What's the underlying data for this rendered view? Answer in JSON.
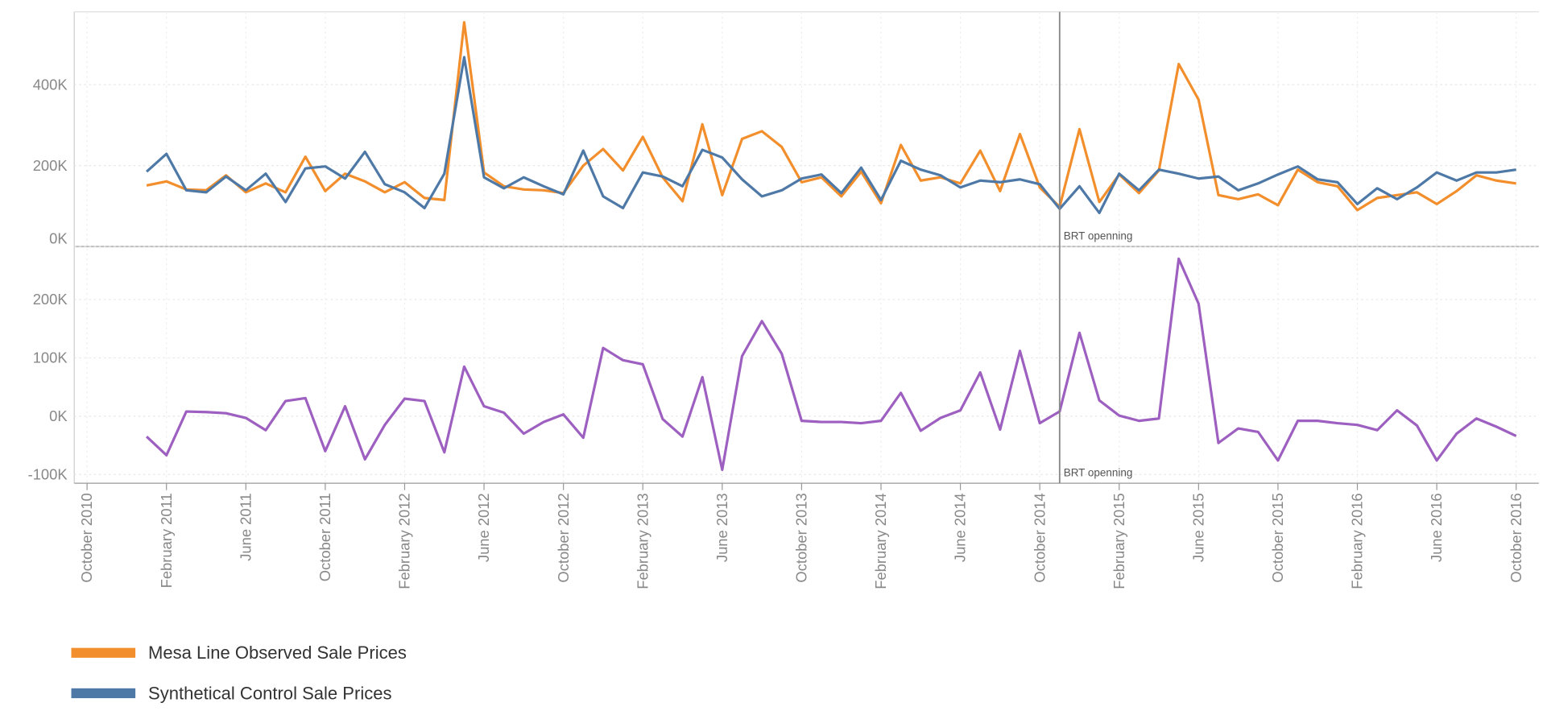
{
  "chart_data": [
    {
      "type": "line",
      "x": [
        "2011-01",
        "2011-02",
        "2011-03",
        "2011-04",
        "2011-05",
        "2011-06",
        "2011-07",
        "2011-08",
        "2011-09",
        "2011-10",
        "2011-11",
        "2011-12",
        "2012-01",
        "2012-02",
        "2012-03",
        "2012-04",
        "2012-05",
        "2012-06",
        "2012-07",
        "2012-08",
        "2012-09",
        "2012-10",
        "2012-11",
        "2012-12",
        "2013-01",
        "2013-02",
        "2013-03",
        "2013-04",
        "2013-05",
        "2013-06",
        "2013-07",
        "2013-08",
        "2013-09",
        "2013-10",
        "2013-11",
        "2013-12",
        "2014-01",
        "2014-02",
        "2014-03",
        "2014-04",
        "2014-05",
        "2014-06",
        "2014-07",
        "2014-08",
        "2014-09",
        "2014-10",
        "2014-11",
        "2014-12",
        "2015-01",
        "2015-02",
        "2015-03",
        "2015-04",
        "2015-05",
        "2015-06",
        "2015-07",
        "2015-08",
        "2015-09",
        "2015-10",
        "2015-11",
        "2015-12",
        "2016-01",
        "2016-02",
        "2016-03",
        "2016-04",
        "2016-05",
        "2016-06",
        "2016-07",
        "2016-08",
        "2016-09",
        "2016-10"
      ],
      "series": [
        {
          "name": "Mesa Line Observed Sale Prices",
          "color": "#f28e2b",
          "values": [
            151000,
            161000,
            141000,
            139000,
            176000,
            134000,
            156000,
            134000,
            222000,
            137000,
            180000,
            161000,
            134000,
            159000,
            120000,
            115000,
            554000,
            183000,
            149000,
            141000,
            139000,
            132000,
            200000,
            241000,
            188000,
            271000,
            171000,
            112000,
            302000,
            127000,
            266000,
            285000,
            246000,
            159000,
            171000,
            124000,
            185000,
            107000,
            251000,
            163000,
            171000,
            156000,
            237000,
            137000,
            278000,
            146000,
            98000,
            290000,
            110000,
            178000,
            132000,
            188000,
            451000,
            363000,
            127000,
            117000,
            129000,
            102000,
            190000,
            159000,
            149000,
            90000,
            120000,
            127000,
            134000,
            105000,
            137000,
            176000,
            163000,
            156000
          ]
        },
        {
          "name": "Synthetical Control Sale Prices",
          "color": "#4e79a7",
          "values": [
            185000,
            229000,
            139000,
            134000,
            173000,
            139000,
            180000,
            110000,
            193000,
            198000,
            168000,
            234000,
            154000,
            134000,
            95000,
            180000,
            468000,
            171000,
            144000,
            171000,
            149000,
            129000,
            237000,
            124000,
            95000,
            183000,
            173000,
            149000,
            239000,
            220000,
            166000,
            124000,
            139000,
            168000,
            178000,
            132000,
            195000,
            115000,
            212000,
            190000,
            176000,
            146000,
            163000,
            159000,
            166000,
            154000,
            93000,
            149000,
            83000,
            180000,
            139000,
            190000,
            180000,
            168000,
            173000,
            139000,
            156000,
            178000,
            198000,
            166000,
            159000,
            105000,
            144000,
            117000,
            146000,
            183000,
            163000,
            183000,
            183000,
            190000
          ]
        }
      ],
      "ylim": [
        0,
        580000
      ],
      "yticks": [
        {
          "value": 0,
          "label": "0K"
        },
        {
          "value": 200000,
          "label": "200K"
        },
        {
          "value": 400000,
          "label": "400K"
        }
      ],
      "grid": true,
      "annotation": {
        "text": "BRT openning",
        "x": "2014-11"
      }
    },
    {
      "type": "line",
      "x": [
        "2011-01",
        "2011-02",
        "2011-03",
        "2011-04",
        "2011-05",
        "2011-06",
        "2011-07",
        "2011-08",
        "2011-09",
        "2011-10",
        "2011-11",
        "2011-12",
        "2012-01",
        "2012-02",
        "2012-03",
        "2012-04",
        "2012-05",
        "2012-06",
        "2012-07",
        "2012-08",
        "2012-09",
        "2012-10",
        "2012-11",
        "2012-12",
        "2013-01",
        "2013-02",
        "2013-03",
        "2013-04",
        "2013-05",
        "2013-06",
        "2013-07",
        "2013-08",
        "2013-09",
        "2013-10",
        "2013-11",
        "2013-12",
        "2014-01",
        "2014-02",
        "2014-03",
        "2014-04",
        "2014-05",
        "2014-06",
        "2014-07",
        "2014-08",
        "2014-09",
        "2014-10",
        "2014-11",
        "2014-12",
        "2015-01",
        "2015-02",
        "2015-03",
        "2015-04",
        "2015-05",
        "2015-06",
        "2015-07",
        "2015-08",
        "2015-09",
        "2015-10",
        "2015-11",
        "2015-12",
        "2016-01",
        "2016-02",
        "2016-03",
        "2016-04",
        "2016-05",
        "2016-06",
        "2016-07",
        "2016-08",
        "2016-09",
        "2016-10"
      ],
      "series": [
        {
          "color": "#9d5fc0",
          "values": [
            -35000,
            -67000,
            8000,
            7000,
            5000,
            -3000,
            -24000,
            26000,
            31000,
            -60000,
            17000,
            -74000,
            -15000,
            30000,
            26000,
            -62000,
            85000,
            17000,
            6000,
            -30000,
            -10000,
            3000,
            -37000,
            117000,
            96000,
            89000,
            -5000,
            -35000,
            67000,
            -92000,
            103000,
            163000,
            107000,
            -8000,
            -10000,
            -10000,
            -12000,
            -8000,
            40000,
            -25000,
            -3000,
            10000,
            75000,
            -23000,
            112000,
            -12000,
            8000,
            143000,
            27000,
            1000,
            -8000,
            -4000,
            270000,
            193000,
            -46000,
            -21000,
            -27000,
            -76000,
            -8000,
            -8000,
            -12000,
            -15000,
            -24000,
            10000,
            -16000,
            -76000,
            -30000,
            -4000,
            -18000,
            -34000
          ]
        }
      ],
      "ylim": [
        -115000,
        291000
      ],
      "yticks": [
        {
          "value": -100000,
          "label": "-100K"
        },
        {
          "value": 0,
          "label": "0K"
        },
        {
          "value": 100000,
          "label": "100K"
        },
        {
          "value": 200000,
          "label": "200K"
        }
      ],
      "grid": true,
      "xlim": [
        "2010-10",
        "2016-10"
      ],
      "xticks": [
        {
          "value": "2010-10",
          "label": "October 2010"
        },
        {
          "value": "2011-02",
          "label": "February 2011"
        },
        {
          "value": "2011-06",
          "label": "June 2011"
        },
        {
          "value": "2011-10",
          "label": "October 2011"
        },
        {
          "value": "2012-02",
          "label": "February 2012"
        },
        {
          "value": "2012-06",
          "label": "June 2012"
        },
        {
          "value": "2012-10",
          "label": "October 2012"
        },
        {
          "value": "2013-02",
          "label": "February 2013"
        },
        {
          "value": "2013-06",
          "label": "June 2013"
        },
        {
          "value": "2013-10",
          "label": "October 2013"
        },
        {
          "value": "2014-02",
          "label": "February 2014"
        },
        {
          "value": "2014-06",
          "label": "June 2014"
        },
        {
          "value": "2014-10",
          "label": "October 2014"
        },
        {
          "value": "2015-02",
          "label": "February 2015"
        },
        {
          "value": "2015-06",
          "label": "June 2015"
        },
        {
          "value": "2015-10",
          "label": "October 2015"
        },
        {
          "value": "2016-02",
          "label": "February 2016"
        },
        {
          "value": "2016-06",
          "label": "June 2016"
        },
        {
          "value": "2016-10",
          "label": "October 2016"
        }
      ],
      "annotation": {
        "text": "BRT openning",
        "x": "2014-11"
      }
    }
  ]
}
